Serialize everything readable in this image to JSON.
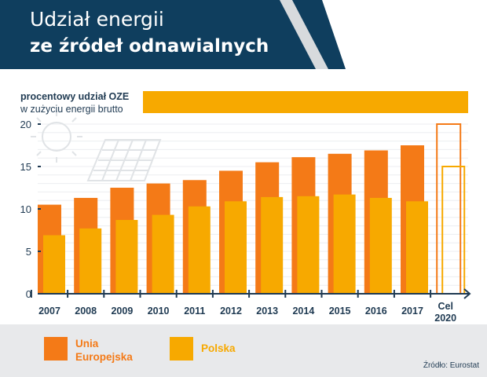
{
  "header": {
    "title_line1": "Udział energii",
    "title_line2": "ze źródeł odnawialnych"
  },
  "subtitle": {
    "line1": "procentowy udział OZE",
    "line2": "w zużyciu energii brutto"
  },
  "colors": {
    "navy": "#0f3e5e",
    "eu_orange": "#f47a17",
    "pl_yellow": "#f7a900",
    "legend_bg": "#e8e9eb",
    "text_dark": "#1f3a52"
  },
  "chart_data": {
    "type": "bar",
    "ylabel": "procentowy udział OZE w zużyciu energii brutto",
    "ylim": [
      0,
      20
    ],
    "yticks": [
      0,
      5,
      10,
      15,
      20
    ],
    "categories": [
      "2007",
      "2008",
      "2009",
      "2010",
      "2011",
      "2012",
      "2013",
      "2014",
      "2015",
      "2016",
      "2017"
    ],
    "series": [
      {
        "name": "Unia Europejska",
        "color": "#f47a17",
        "values": [
          10.5,
          11.3,
          12.5,
          13.0,
          13.4,
          14.5,
          15.5,
          16.1,
          16.5,
          16.9,
          17.5
        ],
        "target": 20
      },
      {
        "name": "Polska",
        "color": "#f7a900",
        "values": [
          6.9,
          7.7,
          8.7,
          9.3,
          10.3,
          10.9,
          11.4,
          11.5,
          11.7,
          11.3,
          10.9
        ],
        "target": 15
      }
    ],
    "target_label_line1": "Cel",
    "target_label_line2": "2020",
    "grid": true,
    "legend_position": "bottom"
  },
  "legend": {
    "eu_label_line1": "Unia",
    "eu_label_line2": "Europejska",
    "pl_label": "Polska"
  },
  "source": "Źródło: Eurostat"
}
